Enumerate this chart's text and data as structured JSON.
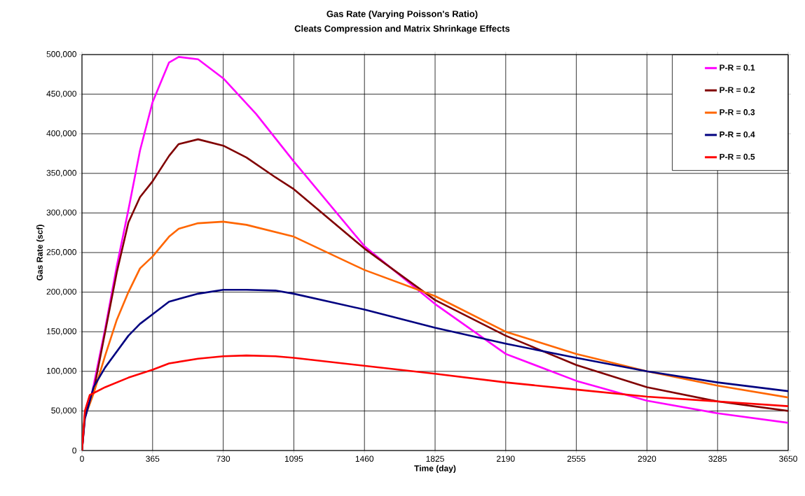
{
  "chart_data": {
    "type": "line",
    "title": "Gas Rate (Varying Poisson's Ratio)",
    "subtitle": "Cleats Compression and Matrix Shrinkage Effects",
    "xlabel": "Time (day)",
    "ylabel": "Gas Rate (scf)",
    "xlim": [
      0,
      3650
    ],
    "ylim": [
      0,
      500000
    ],
    "xticks": [
      0,
      365,
      730,
      1095,
      1460,
      1825,
      2190,
      2555,
      2920,
      3285,
      3650
    ],
    "yticks": [
      {
        "value": 0,
        "label": "0"
      },
      {
        "value": 50000,
        "label": "50,000"
      },
      {
        "value": 100000,
        "label": "100,000"
      },
      {
        "value": 150000,
        "label": "150,000"
      },
      {
        "value": 200000,
        "label": "200,000"
      },
      {
        "value": 250000,
        "label": "250,000"
      },
      {
        "value": 300000,
        "label": "300,000"
      },
      {
        "value": 350000,
        "label": "350,000"
      },
      {
        "value": 400000,
        "label": "400,000"
      },
      {
        "value": 450000,
        "label": "450,000"
      },
      {
        "value": 500000,
        "label": "500,000"
      }
    ],
    "grid": true,
    "legend": "top right",
    "marker": "none",
    "line_style": "solid",
    "series": [
      {
        "name": "P-R = 0.1",
        "color": "#ff00ff",
        "x": [
          0,
          15,
          50,
          120,
          180,
          240,
          300,
          365,
          450,
          500,
          600,
          730,
          900,
          1095,
          1460,
          1825,
          2190,
          2555,
          2920,
          3285,
          3650
        ],
        "values": [
          0,
          45000,
          70000,
          154000,
          233000,
          304000,
          379000,
          440000,
          490000,
          497000,
          494000,
          470000,
          425000,
          365000,
          258000,
          185000,
          122000,
          88000,
          63000,
          47000,
          35000
        ]
      },
      {
        "name": "P-R = 0.2",
        "color": "#800000",
        "x": [
          0,
          15,
          60,
          120,
          180,
          240,
          300,
          365,
          450,
          500,
          600,
          730,
          850,
          1000,
          1095,
          1460,
          1825,
          2190,
          2555,
          2920,
          3285,
          3650
        ],
        "values": [
          0,
          45000,
          75000,
          150000,
          225000,
          288000,
          320000,
          340000,
          372000,
          387000,
          393000,
          385000,
          370000,
          345000,
          330000,
          255000,
          190000,
          145000,
          108000,
          80000,
          62000,
          50000
        ]
      },
      {
        "name": "P-R = 0.3",
        "color": "#ff6600",
        "x": [
          0,
          15,
          60,
          120,
          180,
          240,
          300,
          365,
          450,
          500,
          600,
          730,
          850,
          1095,
          1460,
          1825,
          2190,
          2555,
          2920,
          3285,
          3650
        ],
        "values": [
          0,
          42000,
          72000,
          120000,
          165000,
          200000,
          230000,
          245000,
          270000,
          280000,
          287000,
          289000,
          285000,
          270000,
          228000,
          195000,
          150000,
          122000,
          100000,
          82000,
          67000
        ]
      },
      {
        "name": "P-R = 0.4",
        "color": "#000080",
        "x": [
          0,
          15,
          60,
          120,
          180,
          240,
          300,
          365,
          450,
          600,
          730,
          850,
          1000,
          1095,
          1460,
          1825,
          2190,
          2555,
          2920,
          3285,
          3650
        ],
        "values": [
          0,
          40000,
          80000,
          105000,
          125000,
          145000,
          160000,
          172000,
          188000,
          198000,
          203000,
          203000,
          202000,
          198000,
          178000,
          155000,
          135000,
          117000,
          100000,
          86000,
          75000
        ]
      },
      {
        "name": "P-R = 0.5",
        "color": "#ff0000",
        "x": [
          0,
          15,
          40,
          120,
          240,
          365,
          450,
          600,
          730,
          850,
          1000,
          1095,
          1460,
          1825,
          2190,
          2555,
          2920,
          3285,
          3650
        ],
        "values": [
          0,
          50000,
          70000,
          80000,
          92000,
          102000,
          110000,
          116000,
          119000,
          120000,
          119000,
          117000,
          107000,
          97000,
          86000,
          77000,
          68000,
          62000,
          56000
        ]
      }
    ]
  }
}
